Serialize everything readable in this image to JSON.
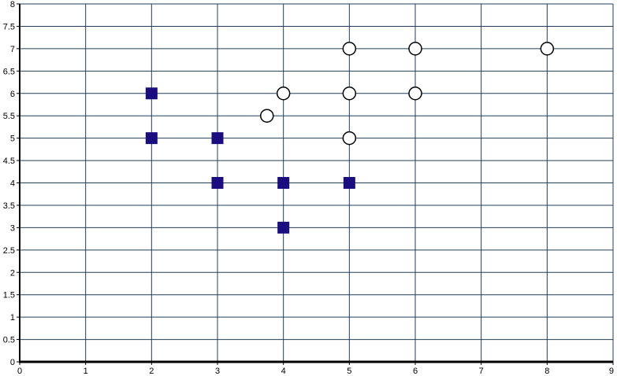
{
  "chart_data": {
    "type": "scatter",
    "title": "",
    "xlabel": "",
    "ylabel": "",
    "xlim": [
      0,
      9
    ],
    "ylim": [
      0,
      8
    ],
    "x_ticks": [
      "0",
      "1",
      "2",
      "3",
      "4",
      "5",
      "6",
      "7",
      "8",
      "9"
    ],
    "y_ticks": [
      "0",
      "0.5",
      "1",
      "1.5",
      "2",
      "2.5",
      "3",
      "3.5",
      "4",
      "4.5",
      "5",
      "5.5",
      "6",
      "6.5",
      "7",
      "7.5",
      "8"
    ],
    "grid": true,
    "series": [
      {
        "marker": "square",
        "color": "#1a0d80",
        "points": [
          {
            "x": 2,
            "y": 6
          },
          {
            "x": 2,
            "y": 5
          },
          {
            "x": 3,
            "y": 5
          },
          {
            "x": 3,
            "y": 4
          },
          {
            "x": 4,
            "y": 4
          },
          {
            "x": 5,
            "y": 4
          },
          {
            "x": 4,
            "y": 3
          }
        ]
      },
      {
        "marker": "circle",
        "color": "#ffffff",
        "points": [
          {
            "x": 5,
            "y": 7
          },
          {
            "x": 6,
            "y": 7
          },
          {
            "x": 8,
            "y": 7
          },
          {
            "x": 4,
            "y": 6
          },
          {
            "x": 5,
            "y": 6
          },
          {
            "x": 6,
            "y": 6
          },
          {
            "x": 3.75,
            "y": 5.5
          },
          {
            "x": 5,
            "y": 5
          }
        ]
      }
    ],
    "grid_color": "#1f3f5f",
    "axis_color": "#000000"
  }
}
